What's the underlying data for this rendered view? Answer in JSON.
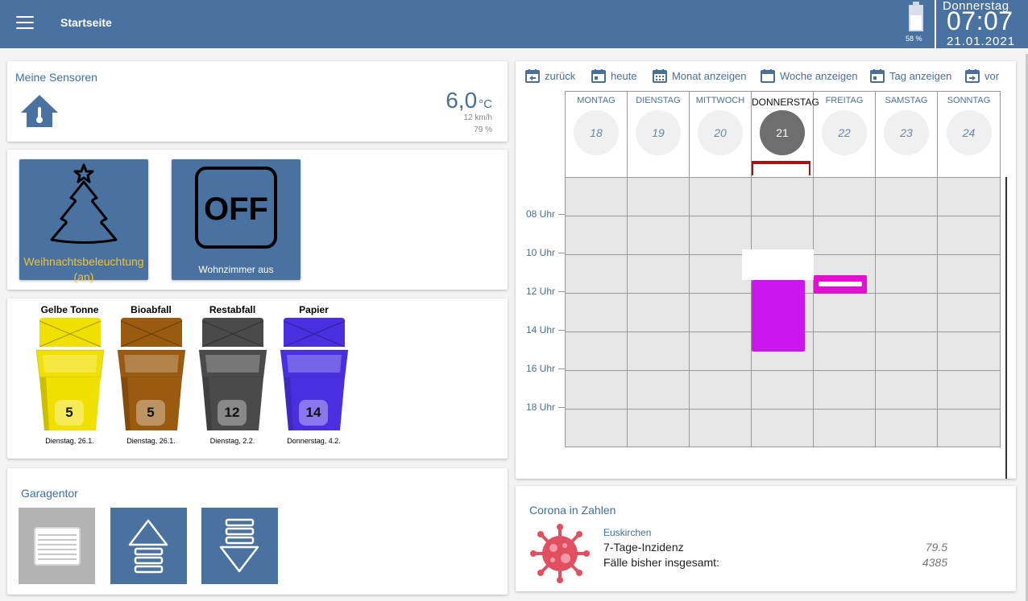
{
  "header": {
    "page_title": "Startseite",
    "battery_pct": "58 %",
    "battery_level": 0.58,
    "weekday": "Donnerstag",
    "time": "07:07",
    "date": "21.01.2021"
  },
  "sensors": {
    "title": "Meine Sensoren",
    "temperature": "6,0",
    "temperature_unit": "°C",
    "wind": "12 km/h",
    "humidity": "79 %"
  },
  "switches": {
    "xmas_label_line1": "Weihnachtsbeleuchtung",
    "xmas_label_line2": "(an)",
    "off_icon_text": "OFF",
    "off_label": "Wohnzimmer aus"
  },
  "waste": {
    "bins": [
      {
        "name": "Gelbe Tonne",
        "days": "5",
        "date": "Dienstag, 26.1.",
        "color": "#f0e000"
      },
      {
        "name": "Bioabfall",
        "days": "5",
        "date": "Dienstag, 26.1.",
        "color": "#9a5a10"
      },
      {
        "name": "Restabfall",
        "days": "12",
        "date": "Dienstag, 2.2.",
        "color": "#4a4a4a"
      },
      {
        "name": "Papier",
        "days": "14",
        "date": "Donnerstag, 4.2.",
        "color": "#4a2fe0"
      }
    ]
  },
  "garage": {
    "title": "Garagentor",
    "buttons": [
      "garage-door-icon",
      "arrow-up-icon",
      "arrow-down-icon"
    ]
  },
  "calendar": {
    "toolbar": {
      "back": "zurück",
      "today": "heute",
      "month": "Monat anzeigen",
      "week": "Woche anzeigen",
      "day": "Tag anzeigen",
      "next": "vor"
    },
    "days": [
      {
        "name": "MONTAG",
        "num": "18"
      },
      {
        "name": "DIENSTAG",
        "num": "19"
      },
      {
        "name": "MITTWOCH",
        "num": "20"
      },
      {
        "name": "DONNERSTAG",
        "num": "21",
        "today": true
      },
      {
        "name": "FREITAG",
        "num": "22"
      },
      {
        "name": "SAMSTAG",
        "num": "23"
      },
      {
        "name": "SONNTAG",
        "num": "24"
      }
    ],
    "hours": [
      "08 Uhr",
      "10 Uhr",
      "12 Uhr",
      "14 Uhr",
      "16 Uhr",
      "18 Uhr"
    ],
    "event_color": "#cc16f0",
    "event2_color": "#e010d0"
  },
  "corona": {
    "title": "Corona in Zahlen",
    "region": "Euskirchen",
    "label_incidence": "7-Tage-Inzidenz",
    "value_incidence": "79.5",
    "label_total": "Fälle bisher insgesamt:",
    "value_total": "4385"
  }
}
